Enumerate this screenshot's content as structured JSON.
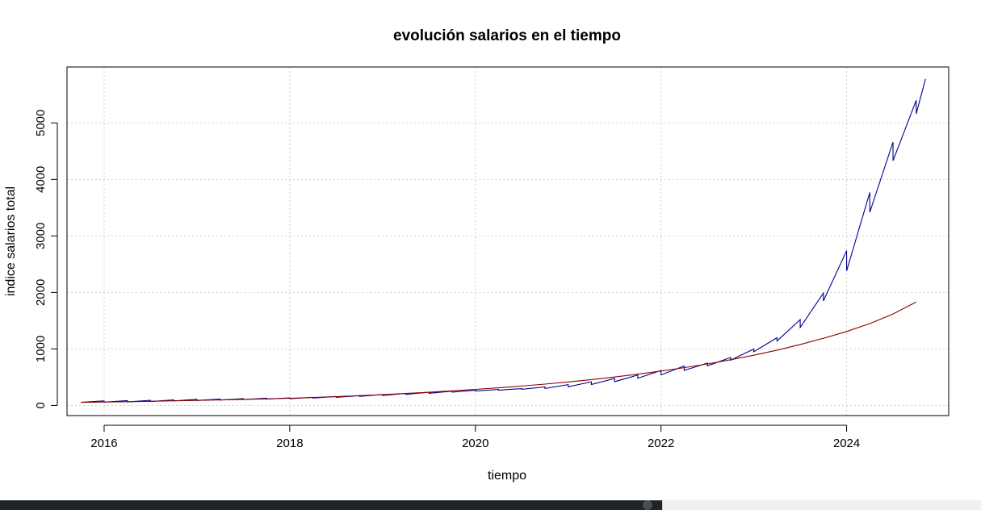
{
  "chart_data": {
    "type": "line",
    "title": "evolución salarios en el tiempo",
    "xlabel": "tiempo",
    "ylabel": "indice salarios total",
    "xlim": [
      2015.6,
      2025.1
    ],
    "ylim": [
      -180,
      5990
    ],
    "xticks": [
      2016,
      2018,
      2020,
      2022,
      2024
    ],
    "xtick_labels": [
      "2016",
      "2018",
      "2020",
      "2022",
      "2024"
    ],
    "yticks": [
      0,
      1000,
      2000,
      3000,
      4000,
      5000
    ],
    "ytick_labels": [
      "0",
      "1000",
      "2000",
      "3000",
      "4000",
      "5000"
    ],
    "grid": true,
    "series": [
      {
        "color": "#00008b",
        "style": "step",
        "x": [
          2015.75,
          2016.0,
          2016.25,
          2016.5,
          2016.75,
          2017.0,
          2017.25,
          2017.5,
          2017.75,
          2018.0,
          2018.25,
          2018.5,
          2018.75,
          2019.0,
          2019.25,
          2019.5,
          2019.75,
          2020.0,
          2020.25,
          2020.5,
          2020.75,
          2021.0,
          2021.25,
          2021.5,
          2021.75,
          2022.0,
          2022.25,
          2022.5,
          2022.75,
          2023.0,
          2023.25,
          2023.5,
          2023.75,
          2024.0,
          2024.25,
          2024.5,
          2024.75
        ],
        "y": [
          55,
          58,
          62,
          70,
          80,
          88,
          95,
          103,
          112,
          120,
          130,
          143,
          158,
          175,
          195,
          215,
          235,
          255,
          270,
          285,
          300,
          330,
          370,
          420,
          480,
          540,
          620,
          700,
          800,
          950,
          1140,
          1380,
          1850,
          2380,
          3420,
          4330,
          5160
        ],
        "x_end": 2024.85,
        "y_end": [
          80,
          85,
          90,
          98,
          108,
          112,
          120,
          128,
          133,
          143,
          158,
          173,
          193,
          213,
          233,
          253,
          268,
          283,
          298,
          328,
          368,
          418,
          478,
          538,
          618,
          698,
          748,
          848,
          998,
          1198,
          1518,
          1988,
          2738,
          3770,
          4660,
          5400,
          5780
        ]
      },
      {
        "color": "#8b0000",
        "style": "line",
        "x": [
          2015.75,
          2016.0,
          2016.25,
          2016.5,
          2016.75,
          2017.0,
          2017.25,
          2017.5,
          2017.75,
          2018.0,
          2018.25,
          2018.5,
          2018.75,
          2019.0,
          2019.25,
          2019.5,
          2019.75,
          2020.0,
          2020.25,
          2020.5,
          2020.75,
          2021.0,
          2021.25,
          2021.5,
          2021.75,
          2022.0,
          2022.25,
          2022.5,
          2022.75,
          2023.0,
          2023.25,
          2023.5,
          2023.75,
          2024.0,
          2024.25,
          2024.5,
          2024.75
        ],
        "y": [
          55,
          60,
          66,
          73,
          81,
          89,
          97,
          106,
          116,
          127,
          140,
          155,
          172,
          191,
          212,
          234,
          258,
          284,
          312,
          343,
          377,
          415,
          457,
          503,
          553,
          608,
          668,
          734,
          808,
          888,
          978,
          1078,
          1188,
          1308,
          1448,
          1618,
          1830
        ]
      }
    ]
  },
  "window": {
    "taskbar_dark_color": "#1f2228",
    "taskbar_light_color": "#f0f0f0"
  }
}
